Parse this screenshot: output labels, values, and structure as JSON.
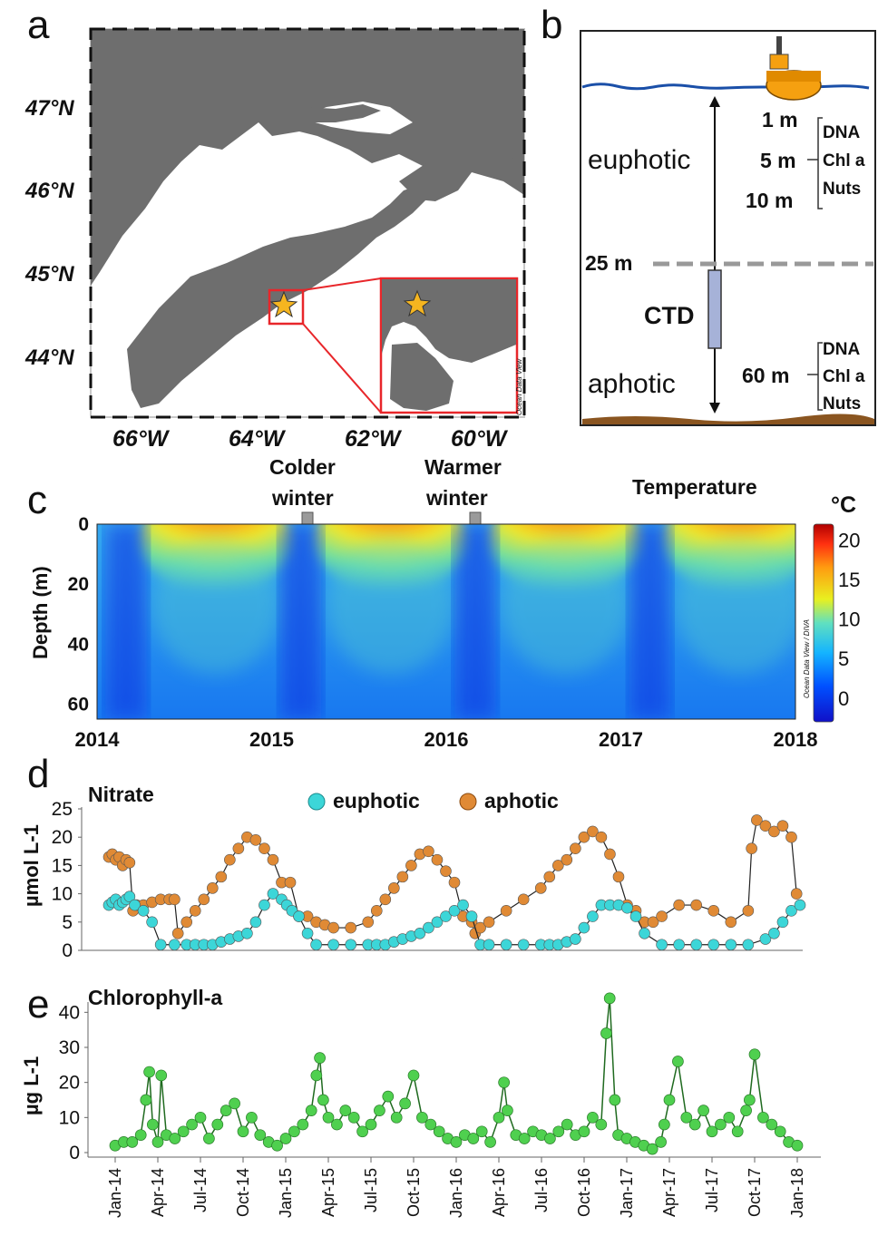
{
  "panels": {
    "a": {
      "label": "a",
      "lat_labels": [
        "47°N",
        "46°N",
        "45°N",
        "44°N"
      ],
      "lon_labels": [
        "66°W",
        "64°W",
        "62°W",
        "60°W"
      ],
      "watermark": "Ocean Data View"
    },
    "b": {
      "label": "b",
      "zone_top": "euphotic",
      "zone_bottom": "aphotic",
      "depth_mark": "25 m",
      "instrument": "CTD",
      "depths_upper": [
        "1 m",
        "5 m",
        "10 m"
      ],
      "depth_lower": "60 m",
      "measures": [
        "DNA",
        "Chl a",
        "Nuts"
      ]
    },
    "c": {
      "label": "c",
      "title": "Temperature",
      "unit": "°C",
      "ylabel": "Depth (m)",
      "annotations": [
        {
          "line1": "Colder",
          "line2": "winter"
        },
        {
          "line1": "Warmer",
          "line2": "winter"
        }
      ],
      "watermark": "Ocean Data View / DIVA"
    },
    "d": {
      "label": "d",
      "ylabel": "µmol L-1"
    },
    "e": {
      "label": "e",
      "ylabel": "µg L-1"
    }
  },
  "chart_data": [
    {
      "panel": "c",
      "type": "heatmap",
      "title": "Temperature",
      "x_ticks": [
        "2014",
        "2015",
        "2016",
        "2017",
        "2018"
      ],
      "y_ticks": [
        0,
        20,
        40,
        60
      ],
      "ylim": [
        65,
        0
      ],
      "colorbar_ticks": [
        20,
        15,
        10,
        5,
        0
      ],
      "colorbar_range": [
        -3,
        22
      ]
    },
    {
      "panel": "d",
      "type": "scatter",
      "title": "Nitrate",
      "ylim": [
        0,
        25
      ],
      "y_ticks": [
        0,
        5,
        10,
        15,
        20,
        25
      ],
      "series": [
        {
          "name": "euphotic",
          "color": "#3cd6d8",
          "x": [
            0,
            0.02,
            0.04,
            0.06,
            0.08,
            0.1,
            0.12,
            0.15,
            0.2,
            0.25,
            0.3,
            0.38,
            0.45,
            0.5,
            0.55,
            0.6,
            0.65,
            0.7,
            0.75,
            0.8,
            0.85,
            0.9,
            0.95,
            1.0,
            1.03,
            1.06,
            1.1,
            1.15,
            1.2,
            1.3,
            1.4,
            1.5,
            1.55,
            1.6,
            1.65,
            1.7,
            1.75,
            1.8,
            1.85,
            1.9,
            1.95,
            2.0,
            2.05,
            2.1,
            2.15,
            2.2,
            2.3,
            2.4,
            2.5,
            2.55,
            2.6,
            2.65,
            2.7,
            2.75,
            2.8,
            2.85,
            2.9,
            2.95,
            3.0,
            3.05,
            3.1,
            3.2,
            3.3,
            3.4,
            3.5,
            3.6,
            3.7,
            3.8,
            3.85,
            3.9,
            3.95,
            4.0
          ],
          "y": [
            8,
            8.5,
            9,
            8,
            8.5,
            9,
            9.5,
            8,
            7,
            5,
            1,
            1,
            1,
            1,
            1,
            1,
            1.5,
            2,
            2.5,
            3,
            5,
            8,
            10,
            9,
            8,
            7,
            6,
            3,
            1,
            1,
            1,
            1,
            1,
            1,
            1.5,
            2,
            2.5,
            3,
            4,
            5,
            6,
            7,
            8,
            6,
            1,
            1,
            1,
            1,
            1,
            1,
            1,
            1.5,
            2,
            4,
            6,
            8,
            8,
            8,
            7.5,
            6,
            3,
            1,
            1,
            1,
            1,
            1,
            1,
            2,
            3,
            5,
            7,
            8
          ]
        },
        {
          "name": "aphotic",
          "color": "#e08a35",
          "x": [
            0,
            0.02,
            0.04,
            0.06,
            0.08,
            0.1,
            0.12,
            0.14,
            0.16,
            0.2,
            0.25,
            0.3,
            0.35,
            0.38,
            0.4,
            0.45,
            0.5,
            0.55,
            0.6,
            0.65,
            0.7,
            0.75,
            0.8,
            0.85,
            0.9,
            0.95,
            1.0,
            1.05,
            1.1,
            1.15,
            1.2,
            1.25,
            1.3,
            1.4,
            1.5,
            1.55,
            1.6,
            1.65,
            1.7,
            1.75,
            1.8,
            1.85,
            1.9,
            1.95,
            2.0,
            2.05,
            2.1,
            2.12,
            2.15,
            2.2,
            2.3,
            2.4,
            2.5,
            2.55,
            2.6,
            2.65,
            2.7,
            2.75,
            2.8,
            2.85,
            2.9,
            2.95,
            3.0,
            3.05,
            3.1,
            3.15,
            3.2,
            3.3,
            3.4,
            3.5,
            3.6,
            3.7,
            3.72,
            3.75,
            3.8,
            3.85,
            3.9,
            3.95,
            3.98
          ],
          "y": [
            16.5,
            17,
            16,
            16.5,
            15,
            16,
            15.5,
            7,
            8,
            8,
            8.5,
            9,
            9,
            9,
            3,
            5,
            7,
            9,
            11,
            13,
            16,
            18,
            20,
            19.5,
            18,
            16,
            12,
            12,
            6,
            6,
            5,
            4.5,
            4,
            4,
            5,
            7,
            9,
            11,
            13,
            15,
            17,
            17.5,
            16,
            14,
            12,
            6,
            5,
            3,
            4,
            5,
            7,
            9,
            11,
            13,
            15,
            16,
            18,
            20,
            21,
            20,
            17,
            13,
            8,
            7,
            5,
            5,
            6,
            8,
            8,
            7,
            5,
            7,
            18,
            23,
            22,
            21,
            22,
            20,
            10
          ]
        }
      ]
    },
    {
      "panel": "e",
      "type": "line",
      "title": "Chlorophyll-a",
      "ylim": [
        0,
        45
      ],
      "y_ticks": [
        0,
        10,
        20,
        30,
        40
      ],
      "x_ticks": [
        "Jan-14",
        "Apr-14",
        "Jul-14",
        "Oct-14",
        "Jan-15",
        "Apr-15",
        "Jul-15",
        "Oct-15",
        "Jan-16",
        "Apr-16",
        "Jul-16",
        "Oct-16",
        "Jan-17",
        "Apr-17",
        "Jul-17",
        "Oct-17",
        "Jan-18"
      ],
      "series": [
        {
          "name": "Chlorophyll-a",
          "color": "#4fd04f",
          "x": [
            0,
            0.05,
            0.1,
            0.15,
            0.18,
            0.2,
            0.22,
            0.25,
            0.27,
            0.3,
            0.35,
            0.4,
            0.45,
            0.5,
            0.55,
            0.6,
            0.65,
            0.7,
            0.75,
            0.8,
            0.85,
            0.9,
            0.95,
            1.0,
            1.05,
            1.1,
            1.15,
            1.18,
            1.2,
            1.22,
            1.25,
            1.3,
            1.35,
            1.4,
            1.45,
            1.5,
            1.55,
            1.6,
            1.65,
            1.7,
            1.75,
            1.8,
            1.85,
            1.9,
            1.95,
            2.0,
            2.05,
            2.1,
            2.15,
            2.2,
            2.25,
            2.28,
            2.3,
            2.35,
            2.4,
            2.45,
            2.5,
            2.55,
            2.6,
            2.65,
            2.7,
            2.75,
            2.8,
            2.85,
            2.88,
            2.9,
            2.93,
            2.95,
            3.0,
            3.05,
            3.1,
            3.15,
            3.2,
            3.22,
            3.25,
            3.3,
            3.35,
            3.4,
            3.45,
            3.5,
            3.55,
            3.6,
            3.65,
            3.7,
            3.72,
            3.75,
            3.8,
            3.85,
            3.9,
            3.95,
            4.0
          ],
          "y": [
            2,
            3,
            3,
            5,
            15,
            23,
            8,
            3,
            22,
            5,
            4,
            6,
            8,
            10,
            4,
            8,
            12,
            14,
            6,
            10,
            5,
            3,
            2,
            4,
            6,
            8,
            12,
            22,
            27,
            15,
            10,
            8,
            12,
            10,
            6,
            8,
            12,
            16,
            10,
            14,
            22,
            10,
            8,
            6,
            4,
            3,
            5,
            4,
            6,
            3,
            10,
            20,
            12,
            5,
            4,
            6,
            5,
            4,
            6,
            8,
            5,
            6,
            10,
            8,
            34,
            44,
            15,
            5,
            4,
            3,
            2,
            1,
            3,
            8,
            15,
            26,
            10,
            8,
            12,
            6,
            8,
            10,
            6,
            12,
            15,
            28,
            10,
            8,
            6,
            3,
            2
          ]
        }
      ]
    }
  ],
  "legend": {
    "euphotic": "euphotic",
    "aphotic": "aphotic"
  }
}
